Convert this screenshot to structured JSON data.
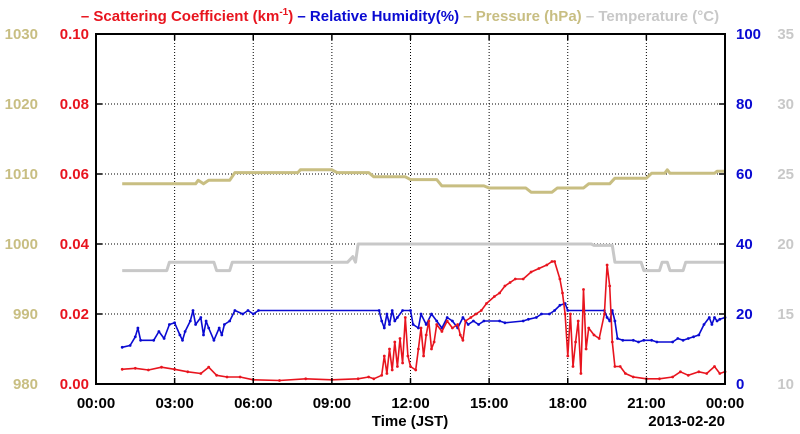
{
  "chart_data": {
    "type": "line",
    "legend": [
      {
        "label": "Scattering Coefficient (km",
        "sup": "-1",
        "suffix": ")",
        "color": "#e8141e"
      },
      {
        "label": "Relative Humidity(%)",
        "color": "#0a0ad2"
      },
      {
        "label": "Pressure (hPa)",
        "color": "#c8be82"
      },
      {
        "label": "Temperature (°C)",
        "color": "#c8c8c8"
      }
    ],
    "xlabel": "Time (JST)",
    "date_label": "2013-02-20",
    "x_ticks": [
      "00:00",
      "03:00",
      "06:00",
      "09:00",
      "12:00",
      "15:00",
      "18:00",
      "21:00",
      "00:00"
    ],
    "xlim": [
      0,
      24
    ],
    "grid": true,
    "axes": {
      "scattering": {
        "ticks": [
          "0.00",
          "0.02",
          "0.04",
          "0.06",
          "0.08",
          "0.10"
        ],
        "range": [
          0,
          0.1
        ],
        "side": "left-inner",
        "color": "#e8141e"
      },
      "pressure": {
        "ticks": [
          "980",
          "990",
          "1000",
          "1010",
          "1020",
          "1030"
        ],
        "range": [
          980,
          1030
        ],
        "side": "left-outer",
        "color": "#c8be82"
      },
      "humidity": {
        "ticks": [
          "0",
          "20",
          "40",
          "60",
          "80",
          "100"
        ],
        "range": [
          0,
          100
        ],
        "side": "right-inner",
        "color": "#0a0ad2"
      },
      "temperature": {
        "ticks": [
          "10",
          "15",
          "20",
          "25",
          "30",
          "35"
        ],
        "range": [
          10,
          35
        ],
        "side": "right-outer",
        "color": "#c8c8c8"
      }
    },
    "series": [
      {
        "name": "Pressure (hPa)",
        "axis": "pressure",
        "color": "#c8be82",
        "points": [
          [
            1.0,
            1008.6
          ],
          [
            3.8,
            1008.6
          ],
          [
            3.9,
            1009.1
          ],
          [
            4.1,
            1008.6
          ],
          [
            4.3,
            1009.1
          ],
          [
            5.1,
            1009.1
          ],
          [
            5.3,
            1010.2
          ],
          [
            7.7,
            1010.2
          ],
          [
            7.8,
            1010.6
          ],
          [
            9.0,
            1010.6
          ],
          [
            9.2,
            1010.2
          ],
          [
            10.4,
            1010.2
          ],
          [
            10.6,
            1009.6
          ],
          [
            11.8,
            1009.6
          ],
          [
            12.0,
            1009.2
          ],
          [
            13.0,
            1009.2
          ],
          [
            13.2,
            1008.3
          ],
          [
            14.8,
            1008.3
          ],
          [
            15.0,
            1008.0
          ],
          [
            16.4,
            1008.0
          ],
          [
            16.6,
            1007.4
          ],
          [
            17.4,
            1007.4
          ],
          [
            17.6,
            1008.0
          ],
          [
            18.6,
            1008.0
          ],
          [
            18.8,
            1008.6
          ],
          [
            19.6,
            1008.6
          ],
          [
            19.8,
            1009.4
          ],
          [
            21.0,
            1009.4
          ],
          [
            21.2,
            1010.1
          ],
          [
            21.7,
            1010.1
          ],
          [
            21.8,
            1010.6
          ],
          [
            21.9,
            1010.1
          ],
          [
            23.6,
            1010.1
          ],
          [
            23.7,
            1010.4
          ],
          [
            24.0,
            1010.4
          ]
        ]
      },
      {
        "name": "Temperature (°C)",
        "axis": "temperature",
        "color": "#c8c8c8",
        "points": [
          [
            1.0,
            18.1
          ],
          [
            2.7,
            18.1
          ],
          [
            2.8,
            18.7
          ],
          [
            4.5,
            18.7
          ],
          [
            4.6,
            18.1
          ],
          [
            5.1,
            18.1
          ],
          [
            5.2,
            18.7
          ],
          [
            9.6,
            18.7
          ],
          [
            9.8,
            19.1
          ],
          [
            9.9,
            18.7
          ],
          [
            10.0,
            20.0
          ],
          [
            18.9,
            20.0
          ],
          [
            19.0,
            19.9
          ],
          [
            19.7,
            19.9
          ],
          [
            19.8,
            18.7
          ],
          [
            20.8,
            18.7
          ],
          [
            20.9,
            18.1
          ],
          [
            21.5,
            18.1
          ],
          [
            21.6,
            18.7
          ],
          [
            21.8,
            18.7
          ],
          [
            21.9,
            18.1
          ],
          [
            22.4,
            18.1
          ],
          [
            22.5,
            18.7
          ],
          [
            24.0,
            18.7
          ]
        ]
      },
      {
        "name": "Relative Humidity(%)",
        "axis": "humidity",
        "color": "#0a0ad2",
        "points": [
          [
            1.0,
            10.5
          ],
          [
            1.3,
            11
          ],
          [
            1.5,
            13.5
          ],
          [
            1.6,
            16
          ],
          [
            1.7,
            12.5
          ],
          [
            2.2,
            12.5
          ],
          [
            2.4,
            15
          ],
          [
            2.6,
            13
          ],
          [
            2.8,
            17
          ],
          [
            3.0,
            17.5
          ],
          [
            3.2,
            14
          ],
          [
            3.3,
            12.5
          ],
          [
            3.4,
            15
          ],
          [
            3.6,
            18
          ],
          [
            3.7,
            21
          ],
          [
            3.8,
            17
          ],
          [
            4.0,
            19
          ],
          [
            4.1,
            14
          ],
          [
            4.2,
            18
          ],
          [
            4.3,
            16
          ],
          [
            4.5,
            12.5
          ],
          [
            4.7,
            16
          ],
          [
            4.8,
            14
          ],
          [
            4.9,
            17
          ],
          [
            5.1,
            18
          ],
          [
            5.3,
            21
          ],
          [
            5.6,
            20
          ],
          [
            5.8,
            21
          ],
          [
            6.0,
            20
          ],
          [
            6.2,
            21
          ],
          [
            10.8,
            21
          ],
          [
            10.9,
            18
          ],
          [
            11.0,
            16
          ],
          [
            11.1,
            20
          ],
          [
            11.2,
            17
          ],
          [
            11.3,
            21
          ],
          [
            11.4,
            18
          ],
          [
            11.5,
            19
          ],
          [
            11.7,
            21
          ],
          [
            12.0,
            21
          ],
          [
            12.1,
            17
          ],
          [
            12.3,
            16
          ],
          [
            12.4,
            20
          ],
          [
            12.6,
            17
          ],
          [
            12.8,
            20
          ],
          [
            13.0,
            18
          ],
          [
            13.2,
            16
          ],
          [
            13.4,
            19
          ],
          [
            13.6,
            18
          ],
          [
            13.8,
            16
          ],
          [
            14.0,
            19
          ],
          [
            14.2,
            17
          ],
          [
            14.4,
            18
          ],
          [
            14.6,
            17
          ],
          [
            14.8,
            18
          ],
          [
            15.4,
            18
          ],
          [
            15.6,
            17.5
          ],
          [
            16.3,
            18
          ],
          [
            16.5,
            18.5
          ],
          [
            16.8,
            19
          ],
          [
            17.0,
            20
          ],
          [
            17.3,
            20
          ],
          [
            17.5,
            21
          ],
          [
            17.7,
            22.5
          ],
          [
            17.9,
            23
          ],
          [
            18.0,
            21
          ],
          [
            19.4,
            21
          ],
          [
            19.5,
            19
          ],
          [
            19.6,
            18
          ],
          [
            19.7,
            21
          ],
          [
            19.8,
            18
          ],
          [
            19.9,
            13
          ],
          [
            20.1,
            12.5
          ],
          [
            20.5,
            12.5
          ],
          [
            20.7,
            12
          ],
          [
            20.9,
            12.5
          ],
          [
            21.2,
            12.5
          ],
          [
            21.4,
            12
          ],
          [
            22.0,
            12
          ],
          [
            22.2,
            13
          ],
          [
            22.4,
            12.5
          ],
          [
            22.6,
            13
          ],
          [
            22.8,
            13.5
          ],
          [
            23.0,
            14
          ],
          [
            23.2,
            17
          ],
          [
            23.4,
            19
          ],
          [
            23.5,
            17
          ],
          [
            23.6,
            19
          ],
          [
            23.7,
            18
          ],
          [
            23.8,
            18.5
          ],
          [
            24.0,
            19
          ]
        ]
      },
      {
        "name": "Scattering Coefficient",
        "axis": "scattering",
        "color": "#e8141e",
        "points": [
          [
            1.0,
            0.0042
          ],
          [
            1.5,
            0.0045
          ],
          [
            2.0,
            0.004
          ],
          [
            2.5,
            0.0048
          ],
          [
            3.0,
            0.0042
          ],
          [
            3.5,
            0.0035
          ],
          [
            4.0,
            0.003
          ],
          [
            4.3,
            0.0048
          ],
          [
            4.6,
            0.0025
          ],
          [
            5.0,
            0.002
          ],
          [
            5.5,
            0.002
          ],
          [
            6.0,
            0.0012
          ],
          [
            7.0,
            0.001
          ],
          [
            8.0,
            0.0015
          ],
          [
            9.0,
            0.0012
          ],
          [
            10.0,
            0.0015
          ],
          [
            10.4,
            0.002
          ],
          [
            10.6,
            0.0015
          ],
          [
            10.9,
            0.0025
          ],
          [
            11.0,
            0.008
          ],
          [
            11.1,
            0.003
          ],
          [
            11.2,
            0.01
          ],
          [
            11.3,
            0.004
          ],
          [
            11.4,
            0.012
          ],
          [
            11.5,
            0.005
          ],
          [
            11.6,
            0.013
          ],
          [
            11.7,
            0.006
          ],
          [
            11.8,
            0.019
          ],
          [
            11.9,
            0.008
          ],
          [
            12.0,
            0.005
          ],
          [
            12.2,
            0.004
          ],
          [
            12.3,
            0.01
          ],
          [
            12.4,
            0.016
          ],
          [
            12.5,
            0.008
          ],
          [
            12.6,
            0.014
          ],
          [
            12.7,
            0.018
          ],
          [
            12.8,
            0.01
          ],
          [
            12.9,
            0.012
          ],
          [
            13.0,
            0.017
          ],
          [
            13.2,
            0.015
          ],
          [
            13.4,
            0.018
          ],
          [
            13.6,
            0.016
          ],
          [
            13.8,
            0.017
          ],
          [
            13.9,
            0.014
          ],
          [
            14.0,
            0.0125
          ],
          [
            14.1,
            0.018
          ],
          [
            14.3,
            0.019
          ],
          [
            14.5,
            0.02
          ],
          [
            14.7,
            0.021
          ],
          [
            14.9,
            0.023
          ],
          [
            15.2,
            0.025
          ],
          [
            15.4,
            0.026
          ],
          [
            15.6,
            0.028
          ],
          [
            15.8,
            0.029
          ],
          [
            16.0,
            0.03
          ],
          [
            16.3,
            0.03
          ],
          [
            16.6,
            0.032
          ],
          [
            16.9,
            0.033
          ],
          [
            17.2,
            0.034
          ],
          [
            17.4,
            0.035
          ],
          [
            17.5,
            0.035
          ],
          [
            17.7,
            0.03
          ],
          [
            17.8,
            0.026
          ],
          [
            17.9,
            0.02
          ],
          [
            18.0,
            0.008
          ],
          [
            18.1,
            0.02
          ],
          [
            18.2,
            0.005
          ],
          [
            18.3,
            0.012
          ],
          [
            18.4,
            0.018
          ],
          [
            18.5,
            0.003
          ],
          [
            18.6,
            0.027
          ],
          [
            18.7,
            0.01
          ],
          [
            18.8,
            0.016
          ],
          [
            19.0,
            0.014
          ],
          [
            19.2,
            0.013
          ],
          [
            19.4,
            0.02
          ],
          [
            19.5,
            0.034
          ],
          [
            19.6,
            0.028
          ],
          [
            19.7,
            0.012
          ],
          [
            19.8,
            0.005
          ],
          [
            20.0,
            0.005
          ],
          [
            20.2,
            0.003
          ],
          [
            20.5,
            0.002
          ],
          [
            21.0,
            0.0015
          ],
          [
            21.5,
            0.0015
          ],
          [
            22.0,
            0.002
          ],
          [
            22.3,
            0.0035
          ],
          [
            22.6,
            0.0025
          ],
          [
            23.0,
            0.0035
          ],
          [
            23.3,
            0.003
          ],
          [
            23.6,
            0.005
          ],
          [
            23.8,
            0.003
          ],
          [
            24.0,
            0.0035
          ]
        ]
      }
    ]
  }
}
